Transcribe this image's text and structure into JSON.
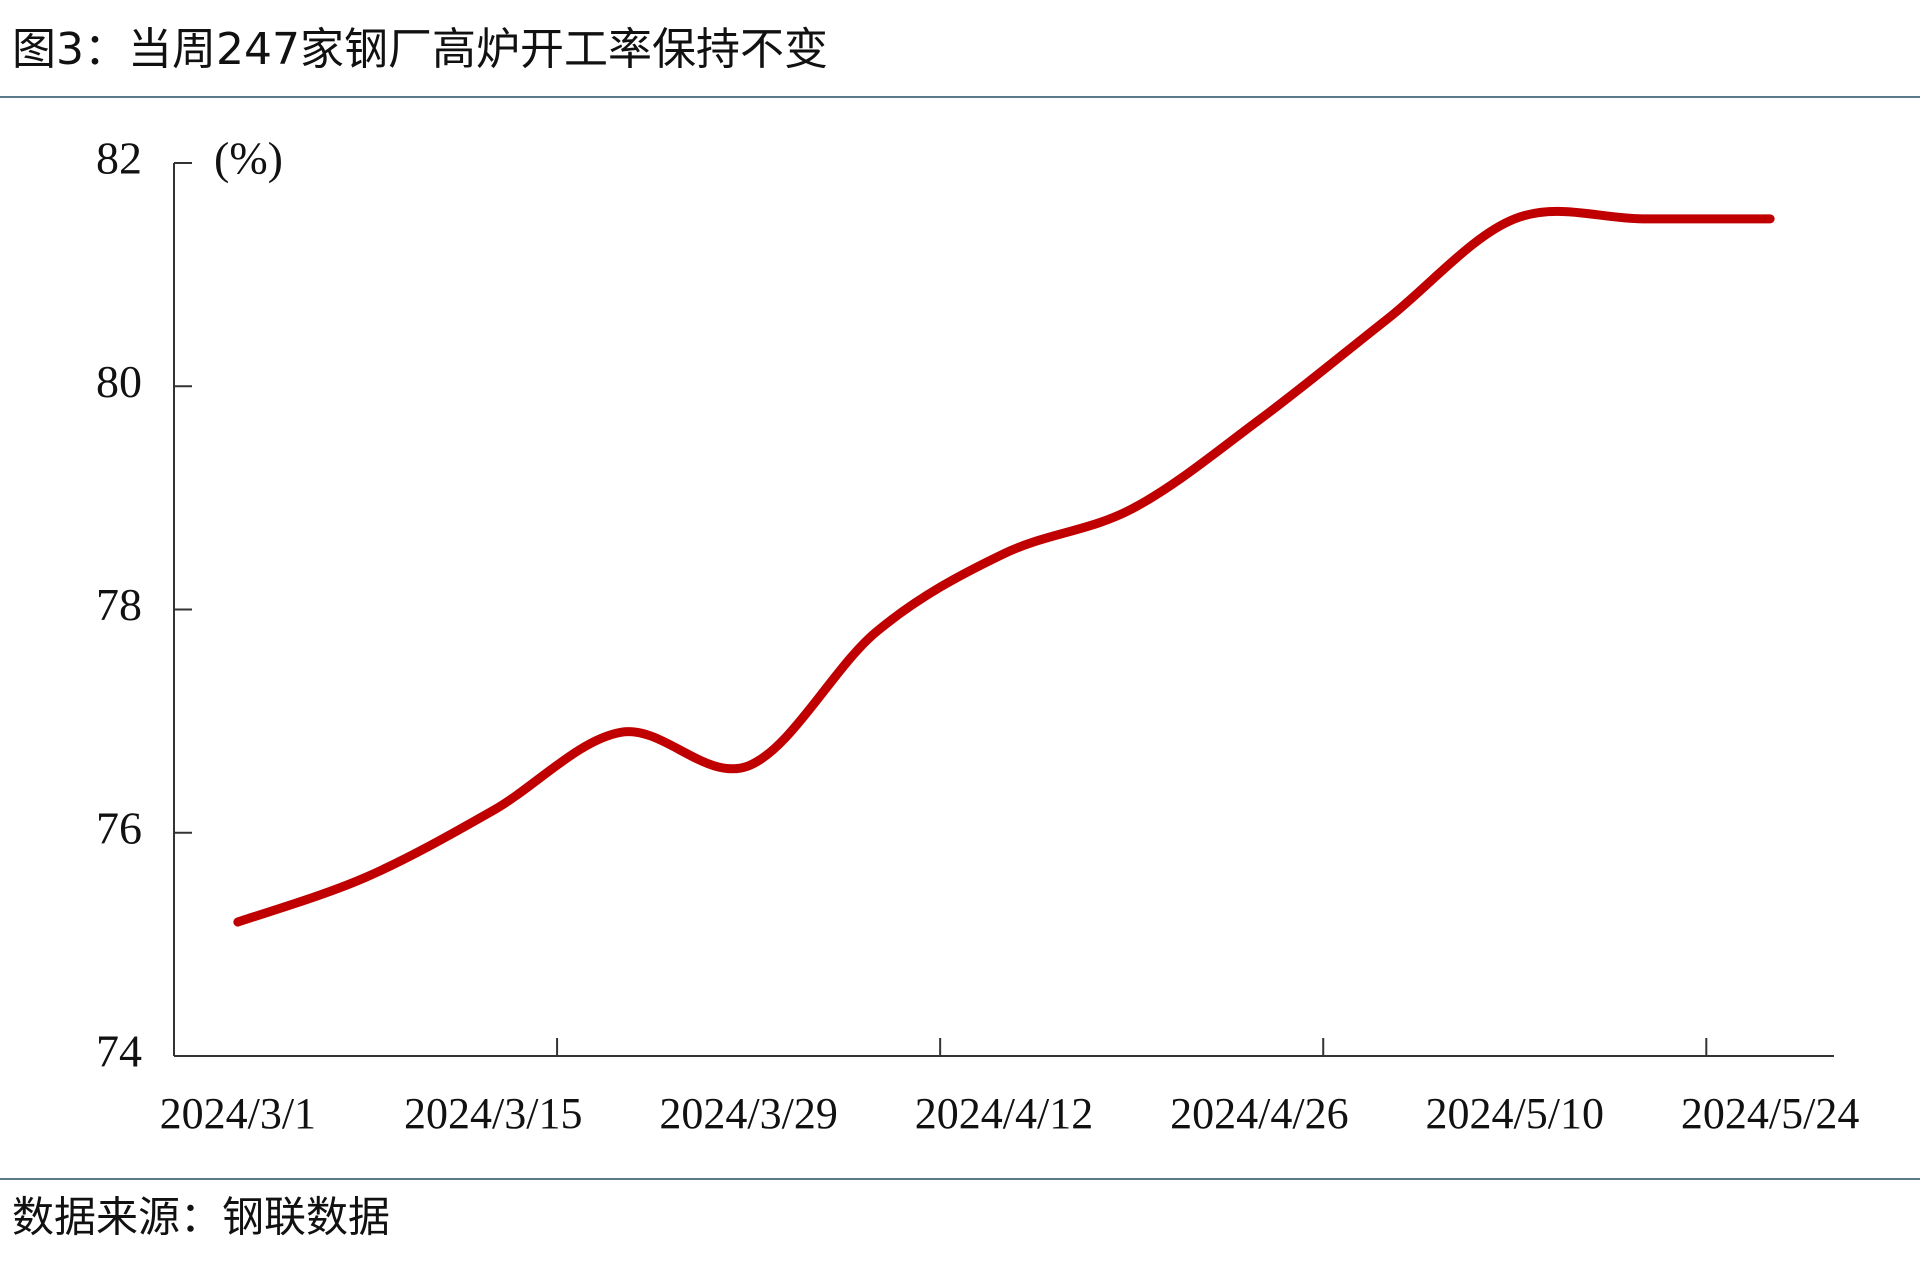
{
  "title": "图3：当周247家钢厂高炉开工率保持不变",
  "source": "数据来源：钢联数据",
  "chart_data": {
    "type": "line",
    "y_label": "(%)",
    "categories": [
      "2024/3/1",
      null,
      "2024/3/15",
      null,
      "2024/3/29",
      null,
      "2024/4/12",
      null,
      "2024/4/26",
      null,
      "2024/5/10",
      null,
      "2024/5/24"
    ],
    "series": [
      {
        "color": "#c00000",
        "values": [
          75.2,
          75.6,
          76.2,
          76.9,
          76.6,
          77.8,
          78.5,
          78.9,
          79.7,
          80.6,
          81.5,
          81.5,
          81.5
        ]
      }
    ],
    "ylim": [
      74,
      82
    ],
    "yticks": [
      74,
      76,
      78,
      80,
      82
    ],
    "grid": false
  }
}
